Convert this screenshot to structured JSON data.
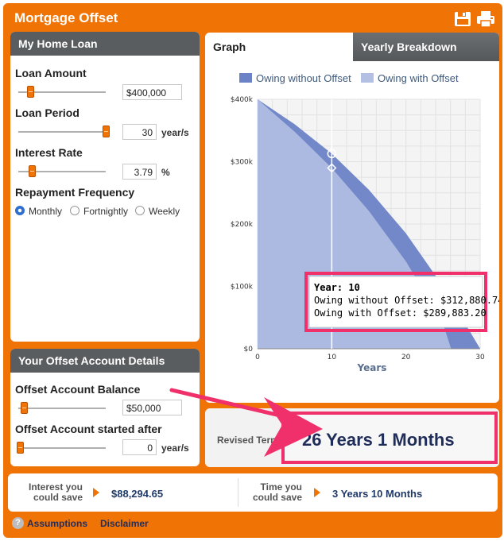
{
  "app": {
    "title": "Mortgage Offset"
  },
  "icons": {
    "save": "save-disk-icon",
    "print": "printer-icon"
  },
  "colors": {
    "accent": "#f07306",
    "header_dark": "#5a5d5f",
    "series_without": "#6b82c6",
    "series_with": "#b3c0e3",
    "highlight": "#f0306a"
  },
  "home_loan": {
    "title": "My Home Loan",
    "loan_amount": {
      "label": "Loan Amount",
      "value": "$400,000"
    },
    "loan_period": {
      "label": "Loan Period",
      "value": "30",
      "unit": "year/s"
    },
    "interest_rate": {
      "label": "Interest Rate",
      "value": "3.79",
      "unit": "%"
    },
    "repayment": {
      "label": "Repayment Frequency",
      "options": [
        "Monthly",
        "Fortnightly",
        "Weekly"
      ],
      "selected": "Monthly"
    }
  },
  "offset": {
    "title": "Your Offset Account Details",
    "balance": {
      "label": "Offset Account Balance",
      "value": "$50,000"
    },
    "started": {
      "label": "Offset Account started after",
      "value": "0",
      "unit": "year/s"
    }
  },
  "tabs": [
    {
      "label": "Graph",
      "active": true
    },
    {
      "label": "Yearly Breakdown",
      "active": false
    }
  ],
  "chart_data": {
    "type": "area",
    "xlabel": "Years",
    "xlim": [
      0,
      30
    ],
    "ylim": [
      0,
      400000
    ],
    "x_ticks": [
      "0",
      "10",
      "20",
      "30"
    ],
    "y_ticks": [
      "$0",
      "$100k",
      "$200k",
      "$300k",
      "$400k"
    ],
    "legend_position": "top",
    "series": [
      {
        "name": "Owing without Offset",
        "color": "#6b82c6",
        "x": [
          0,
          5,
          10,
          15,
          20,
          25,
          30
        ],
        "values": [
          400000,
          360000,
          312880.74,
          255000,
          185000,
          100000,
          0
        ]
      },
      {
        "name": "Owing with Offset",
        "color": "#b3c0e3",
        "x": [
          0,
          5,
          10,
          15,
          20,
          25,
          26.08
        ],
        "values": [
          400000,
          348000,
          289883.2,
          221000,
          140000,
          40000,
          0
        ]
      }
    ],
    "tooltip": {
      "year_line": "Year: 10",
      "without_line": "Owing without Offset: $312,880.74",
      "with_line": "Owing with Offset: $289,883.20",
      "x": 10
    }
  },
  "revised": {
    "label": "Revised Term",
    "value": "26 Years 1 Months"
  },
  "savings": {
    "interest_label_1": "Interest you",
    "interest_label_2": "could save",
    "interest_value": "$88,294.65",
    "time_label_1": "Time you",
    "time_label_2": "could save",
    "time_value": "3 Years 10 Months"
  },
  "footer": {
    "assumptions": "Assumptions",
    "disclaimer": "Disclaimer",
    "help_icon": "question-icon"
  }
}
